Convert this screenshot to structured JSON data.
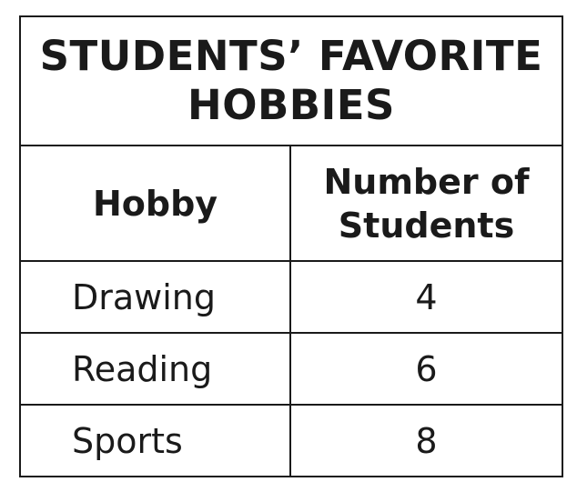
{
  "table": {
    "title_lines": [
      "STUDENTS’ FAVORITE",
      "HOBBIES"
    ],
    "headers": {
      "hobby": "Hobby",
      "count_lines": [
        "Number of",
        "Students"
      ]
    },
    "rows": [
      {
        "hobby": "Drawing",
        "count": "4"
      },
      {
        "hobby": "Reading",
        "count": "6"
      },
      {
        "hobby": "Sports",
        "count": "8"
      }
    ]
  }
}
